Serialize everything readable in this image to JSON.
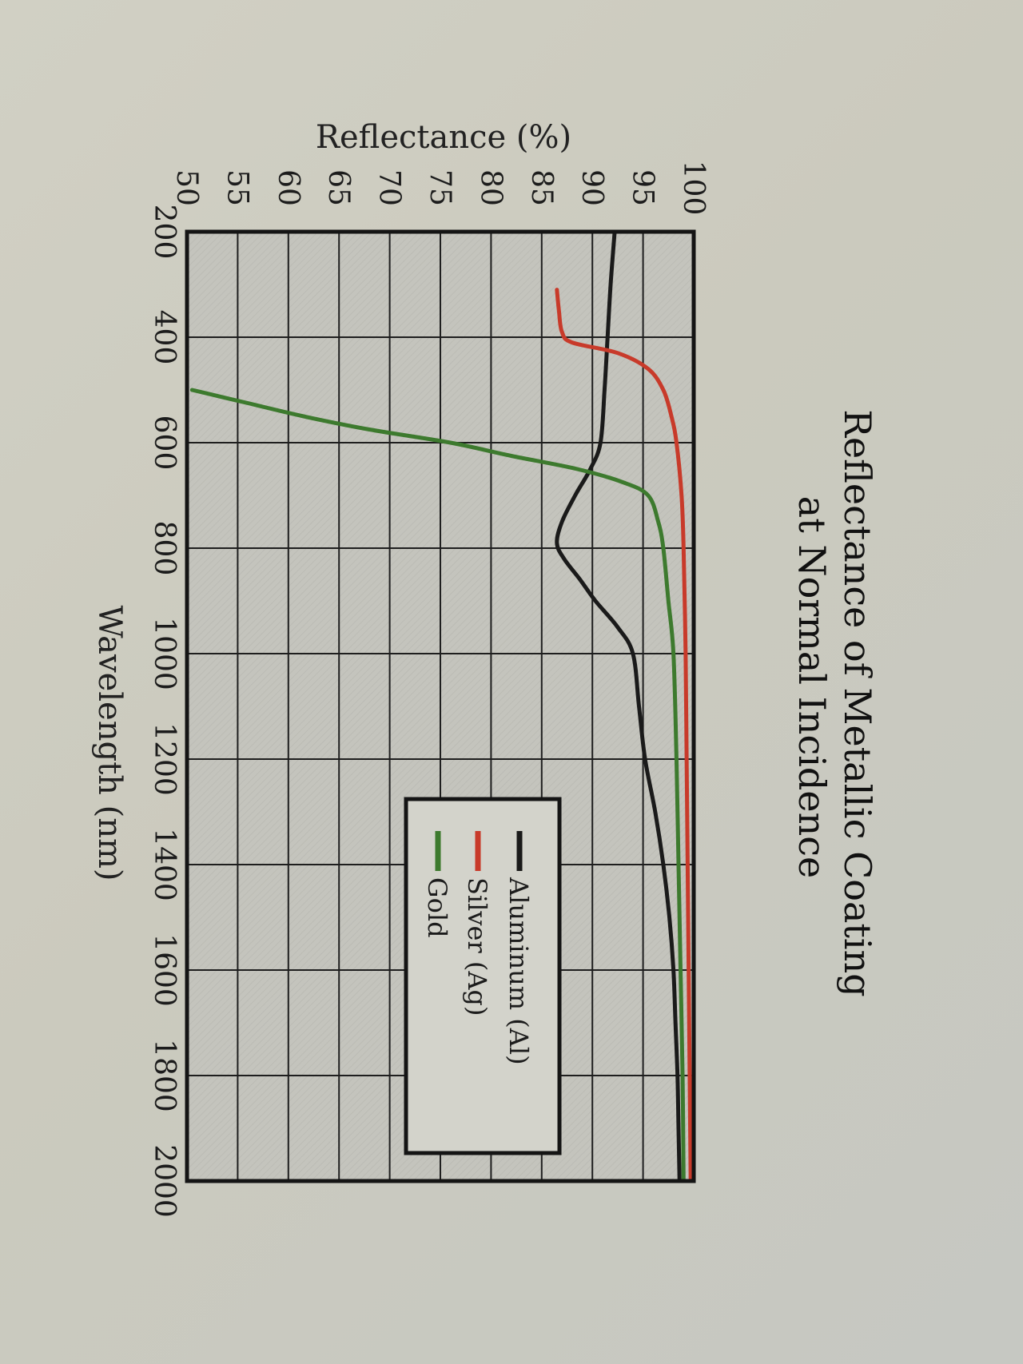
{
  "chart_data": {
    "type": "line",
    "title": "Reflectance of Metallic Coating",
    "subtitle": "at Normal Incidence",
    "xlabel": "Wavelength (nm)",
    "ylabel": "Reflectance (%)",
    "xlim": [
      200,
      2000
    ],
    "ylim": [
      50,
      100
    ],
    "xticks": [
      200,
      400,
      600,
      800,
      1000,
      1200,
      1400,
      1600,
      1800,
      2000
    ],
    "yticks": [
      50,
      55,
      60,
      65,
      70,
      75,
      80,
      85,
      90,
      95,
      100
    ],
    "grid": true,
    "legend_position": "center-right",
    "orientation_note": "printed chart photographed rotated 90 degrees clockwise",
    "series": [
      {
        "name": "Aluminum (Al)",
        "color": "#1a1a1a",
        "x": [
          200,
          300,
          400,
          500,
          600,
          650,
          700,
          750,
          790,
          820,
          860,
          900,
          950,
          1000,
          1100,
          1200,
          1300,
          1400,
          1500,
          1600,
          1700,
          1800,
          1900,
          2000
        ],
        "y": [
          92.2,
          91.8,
          91.5,
          91.2,
          90.8,
          89.8,
          88.3,
          87.0,
          86.5,
          87.2,
          88.8,
          90.3,
          92.5,
          94.0,
          94.6,
          95.2,
          96.2,
          97.0,
          97.6,
          98.0,
          98.2,
          98.4,
          98.5,
          98.6
        ]
      },
      {
        "name": "Silver (Ag)",
        "color": "#c83a2a",
        "x": [
          310,
          350,
          390,
          410,
          430,
          460,
          500,
          550,
          600,
          700,
          800,
          1000,
          1200,
          1400,
          1600,
          1800,
          2000
        ],
        "y": [
          86.5,
          86.7,
          87.0,
          88.0,
          92.5,
          95.5,
          97.0,
          97.8,
          98.3,
          98.8,
          99.0,
          99.2,
          99.3,
          99.4,
          99.5,
          99.6,
          99.7
        ]
      },
      {
        "name": "Gold",
        "color": "#3d7a2e",
        "x": [
          500,
          525,
          550,
          575,
          600,
          625,
          650,
          675,
          700,
          750,
          800,
          900,
          1000,
          1200,
          1400,
          1600,
          1800,
          2000
        ],
        "y": [
          50.5,
          56.0,
          61.5,
          68.0,
          76.0,
          82.0,
          88.5,
          93.0,
          95.5,
          96.5,
          97.0,
          97.5,
          98.0,
          98.3,
          98.5,
          98.7,
          98.9,
          99.0
        ]
      }
    ]
  },
  "legend": {
    "items": [
      {
        "label": "Aluminum (Al)",
        "color": "#1a1a1a"
      },
      {
        "label": "Silver (Ag)",
        "color": "#c83a2a"
      },
      {
        "label": "Gold",
        "color": "#3d7a2e"
      }
    ]
  }
}
